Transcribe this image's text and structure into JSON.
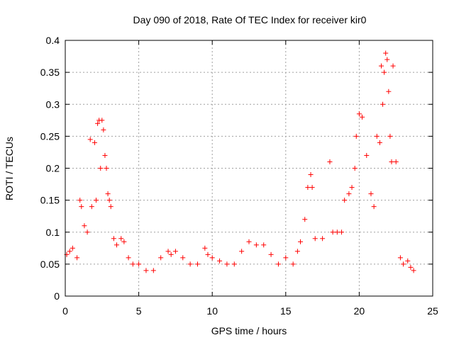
{
  "chart_data": {
    "type": "scatter",
    "title": "Day 090 of 2018, Rate Of TEC Index for receiver kir0",
    "xlabel": "GPS time / hours",
    "ylabel": "ROTI / TECUs",
    "xlim": [
      0,
      25
    ],
    "ylim": [
      0,
      0.4
    ],
    "xticks": [
      "0",
      "5",
      "10",
      "15",
      "20",
      "25"
    ],
    "yticks": [
      "0",
      "0.05",
      "0.1",
      "0.15",
      "0.2",
      "0.25",
      "0.3",
      "0.35",
      "0.4"
    ],
    "grid": true,
    "marker": "+",
    "color": "#ff0000",
    "series": [
      {
        "x": [
          0.1,
          0.3,
          0.5,
          0.8,
          1.0,
          1.1,
          1.3,
          1.5,
          1.7,
          1.8,
          2.0,
          2.1,
          2.2,
          2.3,
          2.4,
          2.5,
          2.6,
          2.7,
          2.8,
          2.9,
          3.0,
          3.1,
          3.3,
          3.5,
          3.8,
          4.0,
          4.3,
          4.6,
          5.0,
          5.5,
          6.0,
          6.5,
          7.0,
          7.2,
          7.5,
          8.0,
          8.5,
          9.0,
          9.5,
          9.7,
          10.0,
          10.5,
          11.0,
          11.5,
          12.0,
          12.5,
          13.0,
          13.5,
          14.0,
          14.5,
          15.0,
          15.5,
          15.8,
          16.0,
          16.3,
          16.5,
          16.7,
          16.8,
          17.0,
          17.5,
          18.0,
          18.2,
          18.5,
          18.8,
          19.0,
          19.3,
          19.5,
          19.7,
          19.8,
          20.0,
          20.2,
          20.5,
          20.8,
          21.0,
          21.2,
          21.4,
          21.5,
          21.6,
          21.7,
          21.8,
          21.9,
          22.0,
          22.1,
          22.2,
          22.3,
          22.5,
          22.8,
          23.0,
          23.3,
          23.5,
          23.7
        ],
        "y": [
          0.065,
          0.07,
          0.075,
          0.06,
          0.15,
          0.14,
          0.11,
          0.1,
          0.245,
          0.14,
          0.24,
          0.15,
          0.27,
          0.275,
          0.2,
          0.275,
          0.26,
          0.22,
          0.2,
          0.16,
          0.15,
          0.14,
          0.09,
          0.08,
          0.09,
          0.085,
          0.06,
          0.05,
          0.05,
          0.04,
          0.04,
          0.06,
          0.07,
          0.065,
          0.07,
          0.06,
          0.05,
          0.05,
          0.075,
          0.065,
          0.06,
          0.055,
          0.05,
          0.05,
          0.07,
          0.085,
          0.08,
          0.08,
          0.065,
          0.05,
          0.06,
          0.05,
          0.07,
          0.085,
          0.12,
          0.17,
          0.19,
          0.17,
          0.09,
          0.09,
          0.21,
          0.1,
          0.1,
          0.1,
          0.15,
          0.16,
          0.17,
          0.2,
          0.25,
          0.285,
          0.28,
          0.22,
          0.16,
          0.14,
          0.25,
          0.24,
          0.36,
          0.3,
          0.35,
          0.38,
          0.37,
          0.32,
          0.25,
          0.21,
          0.36,
          0.21,
          0.06,
          0.05,
          0.055,
          0.045,
          0.04
        ]
      }
    ]
  }
}
